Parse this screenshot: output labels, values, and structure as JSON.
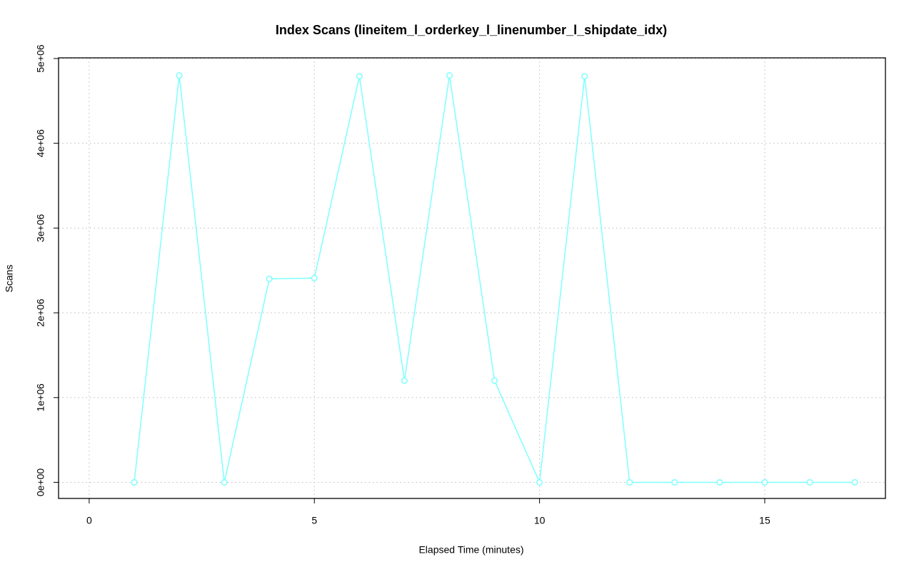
{
  "chart_data": {
    "type": "line",
    "title": "Index Scans (lineitem_l_orderkey_l_linenumber_l_shipdate_idx)",
    "x_label": "Elapsed Time (minutes)",
    "y_label": "Scans",
    "x": [
      1,
      2,
      3,
      4,
      5,
      6,
      7,
      8,
      9,
      10,
      11,
      12,
      13,
      14,
      15,
      16,
      17
    ],
    "series": [
      {
        "name": "Scans",
        "color": "#7fffff",
        "values": [
          0,
          4800000,
          0,
          2400000,
          2410000,
          4790000,
          1200000,
          4800000,
          1200000,
          0,
          4790000,
          0,
          0,
          0,
          0,
          0,
          0
        ]
      }
    ],
    "xlim": [
      -0.68,
      17.68
    ],
    "ylim": [
      -190000,
      5008000
    ],
    "xticks": [
      0,
      5,
      10,
      15
    ],
    "yticks": [
      {
        "value": 0,
        "label": "0e+00"
      },
      {
        "value": 1000000,
        "label": "1e+06"
      },
      {
        "value": 2000000,
        "label": "2e+06"
      },
      {
        "value": 3000000,
        "label": "3e+06"
      },
      {
        "value": 4000000,
        "label": "4e+06"
      },
      {
        "value": 5000000,
        "label": "5e+06"
      }
    ],
    "grid": true
  }
}
